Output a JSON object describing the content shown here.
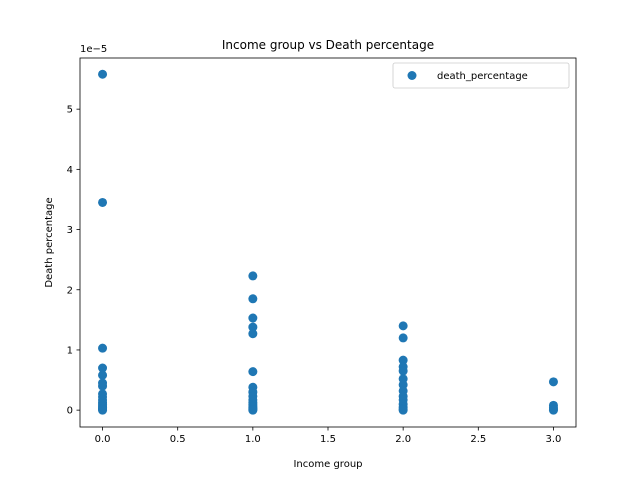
{
  "chart_data": {
    "type": "scatter",
    "title": "Income group vs Death percentage",
    "xlabel": "Income group",
    "ylabel": "Death percentage",
    "y_offset_label": "1e−5",
    "xlim": [
      -0.15,
      3.15
    ],
    "ylim": [
      -0.28,
      5.85
    ],
    "y_scale_multiplier": 1e-05,
    "xticks": [
      0.0,
      0.5,
      1.0,
      1.5,
      2.0,
      2.5,
      3.0
    ],
    "xtick_labels": [
      "0.0",
      "0.5",
      "1.0",
      "1.5",
      "2.0",
      "2.5",
      "3.0"
    ],
    "yticks": [
      0,
      1,
      2,
      3,
      4,
      5
    ],
    "ytick_labels": [
      "0",
      "1",
      "2",
      "3",
      "4",
      "5"
    ],
    "grid": false,
    "legend_position": "top-right",
    "series": [
      {
        "name": "death_percentage",
        "color": "#1f77b4",
        "marker": "circle",
        "points": [
          {
            "x": 0,
            "y": 5.58
          },
          {
            "x": 0,
            "y": 3.45
          },
          {
            "x": 0,
            "y": 1.03
          },
          {
            "x": 0,
            "y": 0.7
          },
          {
            "x": 0,
            "y": 0.58
          },
          {
            "x": 0,
            "y": 0.45
          },
          {
            "x": 0,
            "y": 0.4
          },
          {
            "x": 0,
            "y": 0.27
          },
          {
            "x": 0,
            "y": 0.22
          },
          {
            "x": 0,
            "y": 0.17
          },
          {
            "x": 0,
            "y": 0.13
          },
          {
            "x": 0,
            "y": 0.1
          },
          {
            "x": 0,
            "y": 0.07
          },
          {
            "x": 0,
            "y": 0.05
          },
          {
            "x": 0,
            "y": 0.03
          },
          {
            "x": 0,
            "y": 0.01
          },
          {
            "x": 0,
            "y": 0.0
          },
          {
            "x": 1,
            "y": 2.23
          },
          {
            "x": 1,
            "y": 1.85
          },
          {
            "x": 1,
            "y": 1.53
          },
          {
            "x": 1,
            "y": 1.38
          },
          {
            "x": 1,
            "y": 1.27
          },
          {
            "x": 1,
            "y": 0.64
          },
          {
            "x": 1,
            "y": 0.38
          },
          {
            "x": 1,
            "y": 0.3
          },
          {
            "x": 1,
            "y": 0.23
          },
          {
            "x": 1,
            "y": 0.17
          },
          {
            "x": 1,
            "y": 0.13
          },
          {
            "x": 1,
            "y": 0.1
          },
          {
            "x": 1,
            "y": 0.07
          },
          {
            "x": 1,
            "y": 0.05
          },
          {
            "x": 1,
            "y": 0.03
          },
          {
            "x": 1,
            "y": 0.01
          },
          {
            "x": 1,
            "y": 0.0
          },
          {
            "x": 2,
            "y": 1.4
          },
          {
            "x": 2,
            "y": 1.2
          },
          {
            "x": 2,
            "y": 0.83
          },
          {
            "x": 2,
            "y": 0.72
          },
          {
            "x": 2,
            "y": 0.65
          },
          {
            "x": 2,
            "y": 0.52
          },
          {
            "x": 2,
            "y": 0.42
          },
          {
            "x": 2,
            "y": 0.32
          },
          {
            "x": 2,
            "y": 0.23
          },
          {
            "x": 2,
            "y": 0.17
          },
          {
            "x": 2,
            "y": 0.1
          },
          {
            "x": 2,
            "y": 0.05
          },
          {
            "x": 2,
            "y": 0.02
          },
          {
            "x": 2,
            "y": 0.0
          },
          {
            "x": 3,
            "y": 0.47
          },
          {
            "x": 3,
            "y": 0.08
          },
          {
            "x": 3,
            "y": 0.04
          },
          {
            "x": 3,
            "y": 0.01
          },
          {
            "x": 3,
            "y": 0.0
          }
        ]
      }
    ]
  }
}
